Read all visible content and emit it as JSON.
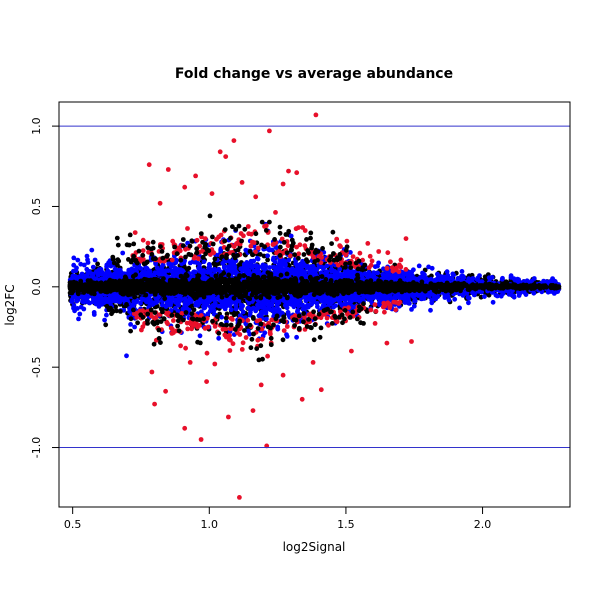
{
  "chart_data": {
    "type": "scatter",
    "title": "Fold change vs average abundance",
    "xlabel": "log2Signal",
    "ylabel": "log2FC",
    "xlim": [
      0.45,
      2.32
    ],
    "ylim": [
      -1.37,
      1.15
    ],
    "xticks": [
      0.5,
      1.0,
      1.5,
      2.0
    ],
    "xtick_labels": [
      "0.5",
      "1.0",
      "1.5",
      "2.0"
    ],
    "yticks": [
      1.0,
      0.5,
      0.0,
      -0.5,
      -1.0
    ],
    "ytick_labels": [
      "1.0",
      "0.5",
      "0.0",
      "-0.5",
      "-1.0"
    ],
    "reference_lines": [
      1.0,
      -1.0
    ],
    "reference_line_color": "#3333cc",
    "grid": false,
    "legend": "none",
    "colors": {
      "black": "#000000",
      "blue": "#0000ff",
      "red": "#e8102a"
    },
    "red_outliers": [
      [
        1.39,
        1.07
      ],
      [
        1.22,
        0.97
      ],
      [
        1.09,
        0.91
      ],
      [
        1.04,
        0.84
      ],
      [
        1.06,
        0.81
      ],
      [
        1.29,
        0.72
      ],
      [
        1.32,
        0.71
      ],
      [
        0.78,
        0.76
      ],
      [
        0.85,
        0.73
      ],
      [
        0.95,
        0.69
      ],
      [
        1.27,
        0.64
      ],
      [
        0.91,
        0.62
      ],
      [
        1.12,
        0.65
      ],
      [
        1.01,
        0.58
      ],
      [
        1.17,
        0.56
      ],
      [
        0.82,
        0.52
      ],
      [
        1.72,
        0.3
      ],
      [
        1.58,
        0.27
      ],
      [
        1.48,
        0.25
      ],
      [
        1.62,
        0.22
      ],
      [
        1.21,
        -0.99
      ],
      [
        1.11,
        -1.31
      ],
      [
        0.97,
        -0.95
      ],
      [
        0.91,
        -0.88
      ],
      [
        1.07,
        -0.81
      ],
      [
        1.16,
        -0.77
      ],
      [
        1.34,
        -0.7
      ],
      [
        1.41,
        -0.64
      ],
      [
        0.84,
        -0.65
      ],
      [
        0.8,
        -0.73
      ],
      [
        0.99,
        -0.59
      ],
      [
        1.19,
        -0.61
      ],
      [
        1.27,
        -0.55
      ],
      [
        0.79,
        -0.53
      ],
      [
        1.52,
        -0.4
      ],
      [
        1.65,
        -0.35
      ],
      [
        1.74,
        -0.34
      ],
      [
        1.02,
        -0.48
      ],
      [
        0.93,
        -0.47
      ],
      [
        1.38,
        -0.47
      ]
    ],
    "series_description_note": ""
  }
}
